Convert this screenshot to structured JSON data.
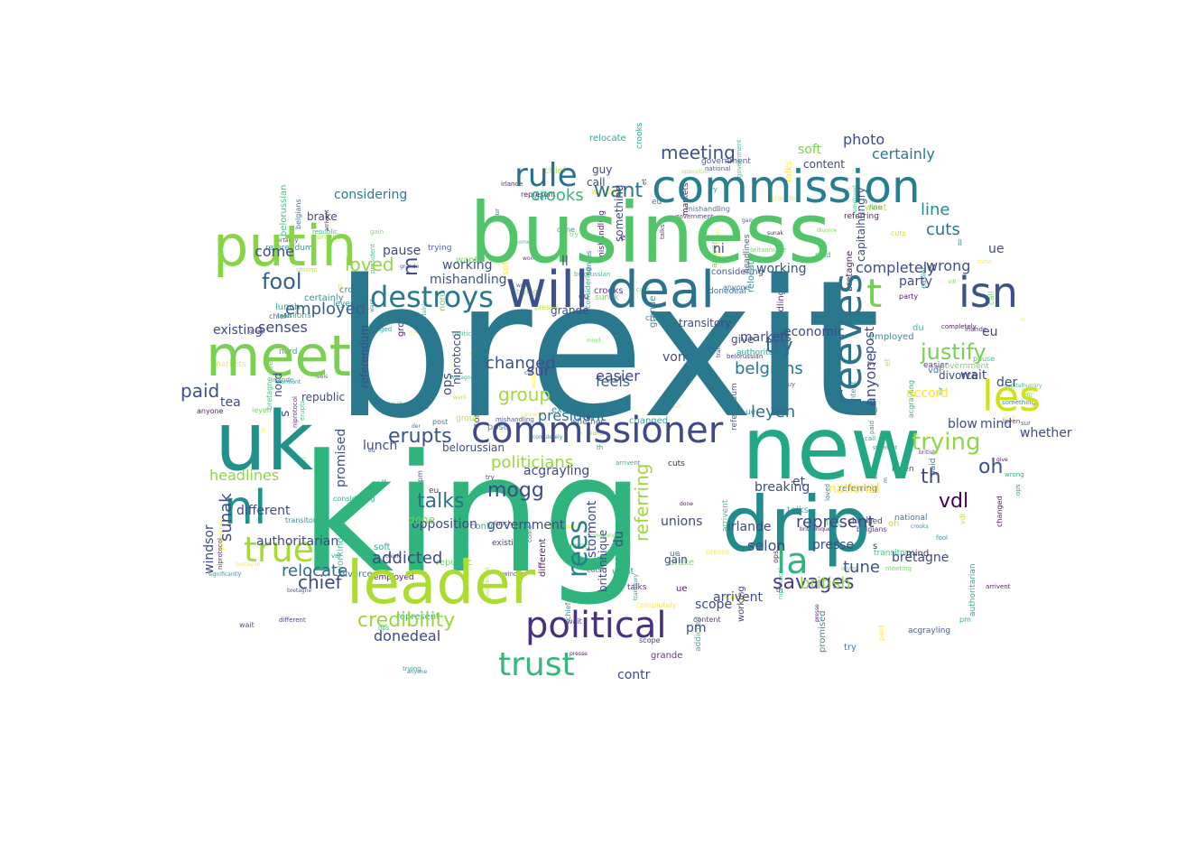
{
  "cloud": {
    "palette": [
      "#440154",
      "#482878",
      "#3e4a89",
      "#31688e",
      "#26828e",
      "#1f9e89",
      "#35b779",
      "#6ece58",
      "#b5de2b",
      "#fde725"
    ],
    "words": [
      {
        "text": "brexit",
        "color": "#2a788e",
        "weight": 1.0
      },
      {
        "text": "king",
        "color": "#2eb47c",
        "weight": 0.95
      },
      {
        "text": "business",
        "color": "#52c569",
        "weight": 0.55
      },
      {
        "text": "uk",
        "color": "#21918c",
        "weight": 0.5
      },
      {
        "text": "new",
        "color": "#22a884",
        "weight": 0.48
      },
      {
        "text": "drip",
        "color": "#228c8d",
        "weight": 0.42
      },
      {
        "text": "leader",
        "color": "#addc30",
        "weight": 0.4
      },
      {
        "text": "putin",
        "color": "#86d549",
        "weight": 0.36
      },
      {
        "text": "meet",
        "color": "#7ad151",
        "weight": 0.36
      },
      {
        "text": "will",
        "color": "#3b528b",
        "weight": 0.34
      },
      {
        "text": "deal",
        "color": "#2c728e",
        "weight": 0.3
      },
      {
        "text": "commission",
        "color": "#287d8e",
        "weight": 0.3
      },
      {
        "text": "commissioner",
        "color": "#3e4a89",
        "weight": 0.28
      },
      {
        "text": "nl",
        "color": "#21918c",
        "weight": 0.28
      },
      {
        "text": "reeves",
        "color": "#2c728e",
        "weight": 0.26
      },
      {
        "text": "isn",
        "color": "#3b528b",
        "weight": 0.24
      },
      {
        "text": "les",
        "color": "#d0e11c",
        "weight": 0.22
      },
      {
        "text": "political",
        "color": "#46327e",
        "weight": 0.22
      },
      {
        "text": "trust",
        "color": "#37b878",
        "weight": 0.2
      },
      {
        "text": "true",
        "color": "#a5db36",
        "weight": 0.2
      },
      {
        "text": "la",
        "color": "#31b57b",
        "weight": 0.2
      },
      {
        "text": "rule",
        "color": "#2c728e",
        "weight": 0.19
      },
      {
        "text": "destroys",
        "color": "#2a788e",
        "weight": 0.18
      },
      {
        "text": "t",
        "color": "#75d054",
        "weight": 0.2
      },
      {
        "text": "credibility",
        "color": "#98d83e",
        "weight": 0.14
      },
      {
        "text": "savages",
        "color": "#433e85",
        "weight": 0.13
      },
      {
        "text": "rees",
        "color": "#26828e",
        "weight": 0.13
      },
      {
        "text": "mogg",
        "color": "#3e4a89",
        "weight": 0.12
      },
      {
        "text": "justify",
        "color": "#7ad151",
        "weight": 0.12
      },
      {
        "text": "trying",
        "color": "#8fd744",
        "weight": 0.12
      },
      {
        "text": "erupts",
        "color": "#3b528b",
        "weight": 0.12
      },
      {
        "text": "vdl",
        "color": "#440154",
        "weight": 0.11
      },
      {
        "text": "leyen",
        "color": "#2f6c8e",
        "weight": 0.1
      },
      {
        "text": "meeting",
        "color": "#3b528b",
        "weight": 0.11
      },
      {
        "text": "fool",
        "color": "#355f8d",
        "weight": 0.11
      },
      {
        "text": "talks",
        "color": "#2c728e",
        "weight": 0.11
      },
      {
        "text": "sunak",
        "color": "#3e4a89",
        "weight": 0.11
      },
      {
        "text": "group",
        "color": "#a2da37",
        "weight": 0.11
      },
      {
        "text": "try",
        "color": "#31688e",
        "weight": 0.11
      },
      {
        "text": "oh",
        "color": "#3b528b",
        "weight": 0.11
      },
      {
        "text": "chief",
        "color": "#3e4a89",
        "weight": 0.1
      },
      {
        "text": "th",
        "color": "#3e4a89",
        "weight": 0.11
      },
      {
        "text": "want",
        "color": "#2c728e",
        "weight": 0.1
      },
      {
        "text": "loved",
        "color": "#93d741",
        "weight": 0.1
      },
      {
        "text": "paid",
        "color": "#3b528b",
        "weight": 0.1
      },
      {
        "text": "crooks",
        "color": "#35b779",
        "weight": 0.1
      },
      {
        "text": "employed",
        "color": "#355f8d",
        "weight": 0.1
      },
      {
        "text": "relocate",
        "color": "#31688e",
        "weight": 0.1
      },
      {
        "text": "addicted",
        "color": "#3e4a89",
        "weight": 0.1
      },
      {
        "text": "referring",
        "color": "#9dd93b",
        "weight": 0.1
      },
      {
        "text": "changed",
        "color": "#3b528b",
        "weight": 0.1
      },
      {
        "text": "headlines",
        "color": "#8fd744",
        "weight": 0.09
      },
      {
        "text": "politicians",
        "color": "#98d83e",
        "weight": 0.09
      },
      {
        "text": "feels",
        "color": "#31688e",
        "weight": 0.09
      },
      {
        "text": "working",
        "color": "#3b528b",
        "weight": 0.09
      },
      {
        "text": "considering",
        "color": "#287d8e",
        "weight": 0.08
      },
      {
        "text": "completely",
        "color": "#3e4a89",
        "weight": 0.08
      },
      {
        "text": "mishandling",
        "color": "#3b528b",
        "weight": 0.08
      },
      {
        "text": "opposition",
        "color": "#3e4a89",
        "weight": 0.08
      },
      {
        "text": "belgians",
        "color": "#2a788e",
        "weight": 0.08
      },
      {
        "text": "british",
        "color": "#8fd744",
        "weight": 0.08
      },
      {
        "text": "tune",
        "color": "#3b528b",
        "weight": 0.09
      },
      {
        "text": "soft",
        "color": "#7ad151",
        "weight": 0.09
      },
      {
        "text": "certainly",
        "color": "#2a788e",
        "weight": 0.07
      },
      {
        "text": "photo",
        "color": "#3e4a89",
        "weight": 0.08
      },
      {
        "text": "wrong",
        "color": "#3b528b",
        "weight": 0.08
      },
      {
        "text": "cuts",
        "color": "#2c728e",
        "weight": 0.08
      },
      {
        "text": "line",
        "color": "#21918c",
        "weight": 0.08
      },
      {
        "text": "sur",
        "color": "#3e4a89",
        "weight": 0.08
      },
      {
        "text": "president",
        "color": "#2c728e",
        "weight": 0.08
      },
      {
        "text": "easier",
        "color": "#3e4a89",
        "weight": 0.08
      },
      {
        "text": "working",
        "color": "#3b528b",
        "weight": 0.08
      },
      {
        "text": "senses",
        "color": "#3e4a89",
        "weight": 0.07
      },
      {
        "text": "come",
        "color": "#3e4a89",
        "weight": 0.07
      },
      {
        "text": "tea",
        "color": "#3e4a89",
        "weight": 0.08
      },
      {
        "text": "lunch",
        "color": "#3e4a89",
        "weight": 0.07
      },
      {
        "text": "existing",
        "color": "#3e4a89",
        "weight": 0.07
      },
      {
        "text": "anyone",
        "color": "#3e4a89",
        "weight": 0.07
      },
      {
        "text": "promised",
        "color": "#3b528b",
        "weight": 0.08
      },
      {
        "text": "windsor",
        "color": "#3e4a89",
        "weight": 0.08
      },
      {
        "text": "ops",
        "color": "#3e4a89",
        "weight": 0.08
      },
      {
        "text": "represent",
        "color": "#3e4a89",
        "weight": 0.08
      },
      {
        "text": "done",
        "color": "#6ece58",
        "weight": 0.08
      },
      {
        "text": "government",
        "color": "#3e4a89",
        "weight": 0.07
      },
      {
        "text": "unions",
        "color": "#3e4a89",
        "weight": 0.07
      },
      {
        "text": "irlande",
        "color": "#3e4a89",
        "weight": 0.07
      },
      {
        "text": "scope",
        "color": "#3e4a89",
        "weight": 0.07
      },
      {
        "text": "selon",
        "color": "#3e4a89",
        "weight": 0.07
      },
      {
        "text": "pm",
        "color": "#3e4a89",
        "weight": 0.07
      },
      {
        "text": "contr",
        "color": "#3e4a89",
        "weight": 0.07
      },
      {
        "text": "blow",
        "color": "#3e4a89",
        "weight": 0.07
      },
      {
        "text": "mind",
        "color": "#3e4a89",
        "weight": 0.07
      },
      {
        "text": "der",
        "color": "#3e4a89",
        "weight": 0.07
      },
      {
        "text": "wait",
        "color": "#3e4a89",
        "weight": 0.07
      },
      {
        "text": "von",
        "color": "#3e4a89",
        "weight": 0.07
      },
      {
        "text": "eu",
        "color": "#3e4a89",
        "weight": 0.07
      },
      {
        "text": "accord",
        "color": "#fde725",
        "weight": 0.07
      },
      {
        "text": "national",
        "color": "#fde725",
        "weight": 0.07
      },
      {
        "text": "breaking",
        "color": "#3e4a89",
        "weight": 0.07
      },
      {
        "text": "et",
        "color": "#3e4a89",
        "weight": 0.07
      },
      {
        "text": "presse",
        "color": "#3e4a89",
        "weight": 0.07
      },
      {
        "text": "bretagne",
        "color": "#3e4a89",
        "weight": 0.07
      },
      {
        "text": "gain",
        "color": "#3e4a89",
        "weight": 0.07
      },
      {
        "text": "markets",
        "color": "#3e4a89",
        "weight": 0.07
      },
      {
        "text": "economic",
        "color": "#3e4a89",
        "weight": 0.07
      },
      {
        "text": "party",
        "color": "#3e4a89",
        "weight": 0.07
      },
      {
        "text": "divorce",
        "color": "#3e4a89",
        "weight": 0.07
      },
      {
        "text": "post",
        "color": "#3e4a89",
        "weight": 0.07
      },
      {
        "text": "guy",
        "color": "#3e4a89",
        "weight": 0.07
      },
      {
        "text": "grande",
        "color": "#3e4a89",
        "weight": 0.07
      },
      {
        "text": "authoritarian",
        "color": "#3e4a89",
        "weight": 0.07
      },
      {
        "text": "donedeal",
        "color": "#3e4a89",
        "weight": 0.07
      },
      {
        "text": "referendum",
        "color": "#3e4a89",
        "weight": 0.07
      },
      {
        "text": "arrivent",
        "color": "#3e4a89",
        "weight": 0.07
      },
      {
        "text": "belorussian",
        "color": "#3e4a89",
        "weight": 0.07
      },
      {
        "text": "something",
        "color": "#3e4a89",
        "weight": 0.07
      },
      {
        "text": "acgrayling",
        "color": "#3e4a89",
        "weight": 0.07
      },
      {
        "text": "brake",
        "color": "#3e4a89",
        "weight": 0.07
      },
      {
        "text": "pause",
        "color": "#3e4a89",
        "weight": 0.07
      },
      {
        "text": "nord",
        "color": "#3e4a89",
        "weight": 0.07
      },
      {
        "text": "transitory",
        "color": "#3e4a89",
        "weight": 0.07
      },
      {
        "text": "give",
        "color": "#3e4a89",
        "weight": 0.07
      },
      {
        "text": "different",
        "color": "#3e4a89",
        "weight": 0.07
      },
      {
        "text": "republic",
        "color": "#3e4a89",
        "weight": 0.07
      },
      {
        "text": "content",
        "color": "#3e4a89",
        "weight": 0.07
      },
      {
        "text": "call",
        "color": "#3e4a89",
        "weight": 0.07
      },
      {
        "text": "whether",
        "color": "#3e4a89",
        "weight": 0.07
      },
      {
        "text": "ue",
        "color": "#3e4a89",
        "weight": 0.07
      },
      {
        "text": "m",
        "color": "#3e4a89",
        "weight": 0.07
      },
      {
        "text": "s",
        "color": "#3e4a89",
        "weight": 0.07
      },
      {
        "text": "ll",
        "color": "#3e4a89",
        "weight": 0.07
      },
      {
        "text": "ni",
        "color": "#3e4a89",
        "weight": 0.07
      },
      {
        "text": "du",
        "color": "#3e4a89",
        "weight": 0.07
      },
      {
        "text": "stormont",
        "color": "#3e4a89",
        "weight": 0.07
      },
      {
        "text": "niprotocol",
        "color": "#3e4a89",
        "weight": 0.07
      },
      {
        "text": "britannique",
        "color": "#3e4a89",
        "weight": 0.07
      },
      {
        "text": "capitalhungry",
        "color": "#3e4a89",
        "weight": 0.07
      },
      {
        "text": "significantly",
        "color": "#3e4a89",
        "weight": 0.07
      }
    ]
  }
}
